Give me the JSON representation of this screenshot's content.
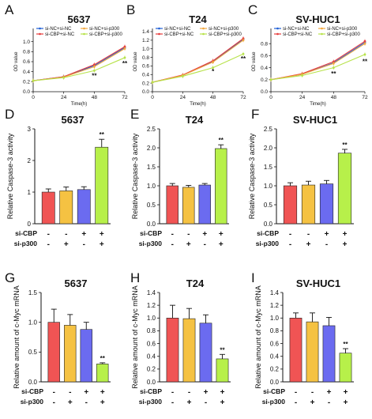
{
  "chart_data": [
    {
      "panel": "A",
      "type": "line",
      "title": "5637",
      "xlabel": "Time(h)",
      "ylabel": "OD value",
      "x": [
        0,
        24,
        48,
        72
      ],
      "xlim": [
        0,
        72
      ],
      "xticks": [
        0,
        24,
        48,
        72
      ],
      "ylim": [
        0,
        1.2
      ],
      "yticks": [
        0,
        0.2,
        0.4,
        0.6,
        0.8,
        1.0
      ],
      "series": [
        {
          "name": "si-NC+si-NC",
          "color": "#1f5fd6",
          "values": [
            0.22,
            0.3,
            0.52,
            0.88
          ]
        },
        {
          "name": "si-CBP+si-NC",
          "color": "#e63b3b",
          "values": [
            0.22,
            0.3,
            0.54,
            0.9
          ]
        },
        {
          "name": "si-NC+si-p300",
          "color": "#f2a73c",
          "values": [
            0.22,
            0.29,
            0.5,
            0.86
          ]
        },
        {
          "name": "si-CBP+si-p300",
          "color": "#b7e24a",
          "values": [
            0.22,
            0.28,
            0.42,
            0.68
          ]
        }
      ],
      "annotations": [
        {
          "x": 48,
          "y": 0.28,
          "text": "**"
        },
        {
          "x": 72,
          "y": 0.52,
          "text": "**"
        }
      ]
    },
    {
      "panel": "B",
      "type": "line",
      "title": "T24",
      "xlabel": "Time(h)",
      "ylabel": "OD value",
      "x": [
        0,
        24,
        48,
        72
      ],
      "xlim": [
        0,
        72
      ],
      "xticks": [
        0,
        24,
        48,
        72
      ],
      "ylim": [
        0,
        1.4
      ],
      "yticks": [
        0,
        0.2,
        0.4,
        0.6,
        0.8,
        1.0,
        1.2,
        1.4
      ],
      "series": [
        {
          "name": "si-NC+si-NC",
          "color": "#1f5fd6",
          "values": [
            0.22,
            0.38,
            0.7,
            1.22
          ]
        },
        {
          "name": "si-CBP+si-NC",
          "color": "#e63b3b",
          "values": [
            0.22,
            0.39,
            0.72,
            1.24
          ]
        },
        {
          "name": "si-NC+si-p300",
          "color": "#f2a73c",
          "values": [
            0.22,
            0.38,
            0.69,
            1.2
          ]
        },
        {
          "name": "si-CBP+si-p300",
          "color": "#b7e24a",
          "values": [
            0.22,
            0.36,
            0.56,
            0.88
          ]
        }
      ],
      "annotations": [
        {
          "x": 48,
          "y": 0.42,
          "text": "*"
        },
        {
          "x": 72,
          "y": 0.72,
          "text": "**"
        }
      ]
    },
    {
      "panel": "C",
      "type": "line",
      "title": "SV-HUC1",
      "xlabel": "Time(h)",
      "ylabel": "OD value",
      "x": [
        0,
        24,
        48,
        72
      ],
      "xlim": [
        0,
        72
      ],
      "xticks": [
        0,
        24,
        48,
        72
      ],
      "ylim": [
        0,
        1.0
      ],
      "yticks": [
        0,
        0.2,
        0.4,
        0.6,
        0.8
      ],
      "series": [
        {
          "name": "si-NC+si-NC",
          "color": "#1f5fd6",
          "values": [
            0.2,
            0.29,
            0.48,
            0.82
          ]
        },
        {
          "name": "si-CBP+si-NC",
          "color": "#e63b3b",
          "values": [
            0.2,
            0.3,
            0.5,
            0.84
          ]
        },
        {
          "name": "si-NC+si-p300",
          "color": "#f2a73c",
          "values": [
            0.2,
            0.29,
            0.47,
            0.8
          ]
        },
        {
          "name": "si-CBP+si-p300",
          "color": "#b7e24a",
          "values": [
            0.2,
            0.27,
            0.4,
            0.62
          ]
        }
      ],
      "annotations": [
        {
          "x": 48,
          "y": 0.26,
          "text": "**"
        },
        {
          "x": 72,
          "y": 0.47,
          "text": "**"
        }
      ]
    },
    {
      "panel": "D",
      "type": "bar",
      "title": "5637",
      "ylabel": "Relative Caspase-3 activity",
      "ylim": [
        0,
        3
      ],
      "yticks": [
        0,
        1,
        2,
        3
      ],
      "values": [
        1.0,
        1.04,
        1.08,
        2.42
      ],
      "errors": [
        0.1,
        0.12,
        0.09,
        0.25
      ],
      "colors": [
        "#f05454",
        "#f5c242",
        "#6b6bf0",
        "#b7f04a"
      ],
      "sig": [
        "",
        "",
        "",
        "**"
      ],
      "row_labels": [
        "si-CBP",
        "si-p300"
      ],
      "rows": [
        [
          "-",
          "-",
          "+",
          "+"
        ],
        [
          "-",
          "+",
          "-",
          "+"
        ]
      ]
    },
    {
      "panel": "E",
      "type": "bar",
      "title": "T24",
      "ylabel": "Relative Caspase-3 activity",
      "ylim": [
        0,
        2.5
      ],
      "yticks": [
        0,
        0.5,
        1.0,
        1.5,
        2.0,
        2.5
      ],
      "values": [
        1.0,
        0.96,
        1.02,
        1.98
      ],
      "errors": [
        0.06,
        0.05,
        0.04,
        0.1
      ],
      "colors": [
        "#f05454",
        "#f5c242",
        "#6b6bf0",
        "#b7f04a"
      ],
      "sig": [
        "",
        "",
        "",
        "**"
      ],
      "row_labels": [
        "si-CBP",
        "si-p300"
      ],
      "rows": [
        [
          "-",
          "-",
          "+",
          "+"
        ],
        [
          "-",
          "+",
          "-",
          "+"
        ]
      ]
    },
    {
      "panel": "F",
      "type": "bar",
      "title": "SV-HUC1",
      "ylabel": "Relative Caspase-3 activity",
      "ylim": [
        0,
        2.5
      ],
      "yticks": [
        0,
        0.5,
        1.0,
        1.5,
        2.0,
        2.5
      ],
      "values": [
        1.0,
        1.02,
        1.05,
        1.86
      ],
      "errors": [
        0.08,
        0.1,
        0.09,
        0.1
      ],
      "colors": [
        "#f05454",
        "#f5c242",
        "#6b6bf0",
        "#b7f04a"
      ],
      "sig": [
        "",
        "",
        "",
        "**"
      ],
      "row_labels": [
        "si-CBP",
        "si-p300"
      ],
      "rows": [
        [
          "-",
          "-",
          "+",
          "+"
        ],
        [
          "-",
          "+",
          "-",
          "+"
        ]
      ]
    },
    {
      "panel": "G",
      "type": "bar",
      "title": "5637",
      "ylabel": "Relative amount of c-Myc mRNA",
      "ylim": [
        0,
        1.5
      ],
      "yticks": [
        0,
        0.5,
        1.0,
        1.5
      ],
      "values": [
        1.0,
        0.95,
        0.88,
        0.3
      ],
      "errors": [
        0.22,
        0.18,
        0.12,
        0.02
      ],
      "colors": [
        "#f05454",
        "#f5c242",
        "#6b6bf0",
        "#b7f04a"
      ],
      "sig": [
        "",
        "",
        "",
        "**"
      ],
      "row_labels": [
        "si-CBP",
        "si-p300"
      ],
      "rows": [
        [
          "-",
          "-",
          "+",
          "+"
        ],
        [
          "-",
          "+",
          "-",
          "+"
        ]
      ]
    },
    {
      "panel": "H",
      "type": "bar",
      "title": "T24",
      "ylabel": "Relative amount of c-Myc mRNA",
      "ylim": [
        0,
        1.4
      ],
      "yticks": [
        0,
        0.2,
        0.4,
        0.6,
        0.8,
        1.0,
        1.2,
        1.4
      ],
      "values": [
        1.0,
        0.99,
        0.92,
        0.36
      ],
      "errors": [
        0.2,
        0.16,
        0.13,
        0.07
      ],
      "colors": [
        "#f05454",
        "#f5c242",
        "#6b6bf0",
        "#b7f04a"
      ],
      "sig": [
        "",
        "",
        "",
        "**"
      ],
      "row_labels": [
        "si-CBP",
        "si-p300"
      ],
      "rows": [
        [
          "-",
          "-",
          "+",
          "+"
        ],
        [
          "-",
          "+",
          "-",
          "+"
        ]
      ]
    },
    {
      "panel": "I",
      "type": "bar",
      "title": "SV-HUC1",
      "ylabel": "Relative amount of c-Myc mRNA",
      "ylim": [
        0,
        1.4
      ],
      "yticks": [
        0,
        0.2,
        0.4,
        0.6,
        0.8,
        1.0,
        1.2,
        1.4
      ],
      "values": [
        1.0,
        0.94,
        0.88,
        0.45
      ],
      "errors": [
        0.08,
        0.14,
        0.13,
        0.07
      ],
      "colors": [
        "#f05454",
        "#f5c242",
        "#6b6bf0",
        "#b7f04a"
      ],
      "sig": [
        "",
        "",
        "",
        "**"
      ],
      "row_labels": [
        "si-CBP",
        "si-p300"
      ],
      "rows": [
        [
          "-",
          "-",
          "+",
          "+"
        ],
        [
          "-",
          "+",
          "-",
          "+"
        ]
      ]
    }
  ]
}
